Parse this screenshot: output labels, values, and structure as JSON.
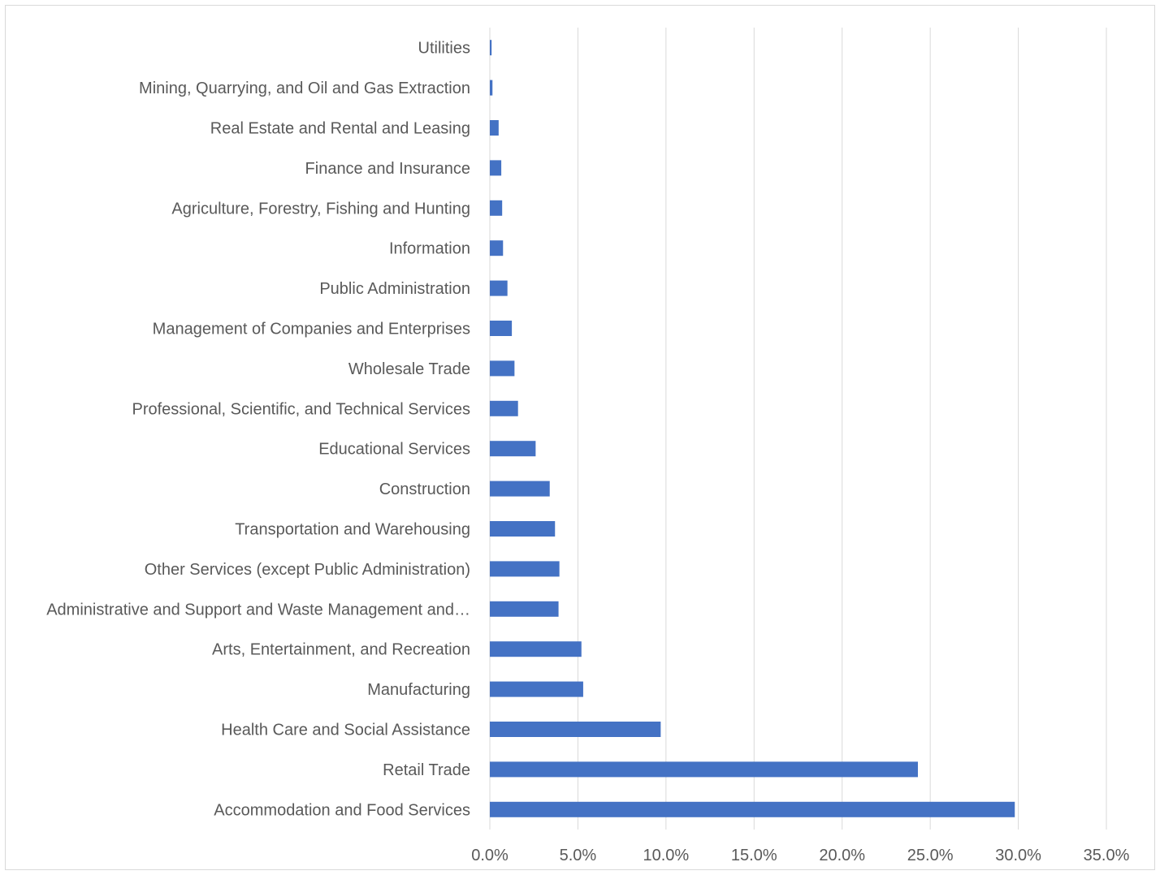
{
  "chart_data": {
    "type": "bar",
    "orientation": "horizontal",
    "categories": [
      "Accommodation and Food Services",
      "Retail Trade",
      "Health Care and Social Assistance",
      "Manufacturing",
      "Arts, Entertainment, and Recreation",
      "Administrative and Support and Waste Management and…",
      "Other Services (except Public Administration)",
      "Transportation and Warehousing",
      "Construction",
      "Educational Services",
      "Professional, Scientific, and Technical Services",
      "Wholesale Trade",
      "Management of Companies and Enterprises",
      "Public Administration",
      "Information",
      "Agriculture, Forestry, Fishing and Hunting",
      "Finance and Insurance",
      "Real Estate and Rental and Leasing",
      "Mining, Quarrying, and Oil and Gas Extraction",
      "Utilities"
    ],
    "values": [
      29.8,
      24.3,
      9.7,
      5.3,
      5.2,
      3.9,
      3.95,
      3.7,
      3.4,
      2.6,
      1.6,
      1.4,
      1.25,
      1.0,
      0.75,
      0.7,
      0.65,
      0.5,
      0.15,
      0.1
    ],
    "xlim": [
      0,
      35
    ],
    "xticks": [
      "0.0%",
      "5.0%",
      "10.0%",
      "15.0%",
      "20.0%",
      "25.0%",
      "30.0%",
      "35.0%"
    ],
    "xtick_values": [
      0,
      5,
      10,
      15,
      20,
      25,
      30,
      35
    ],
    "bar_color": "#4472c4",
    "grid": "vertical",
    "gridline_color": "#d9d9d9",
    "label_color": "#595959",
    "title": "",
    "xlabel": "",
    "ylabel": ""
  }
}
